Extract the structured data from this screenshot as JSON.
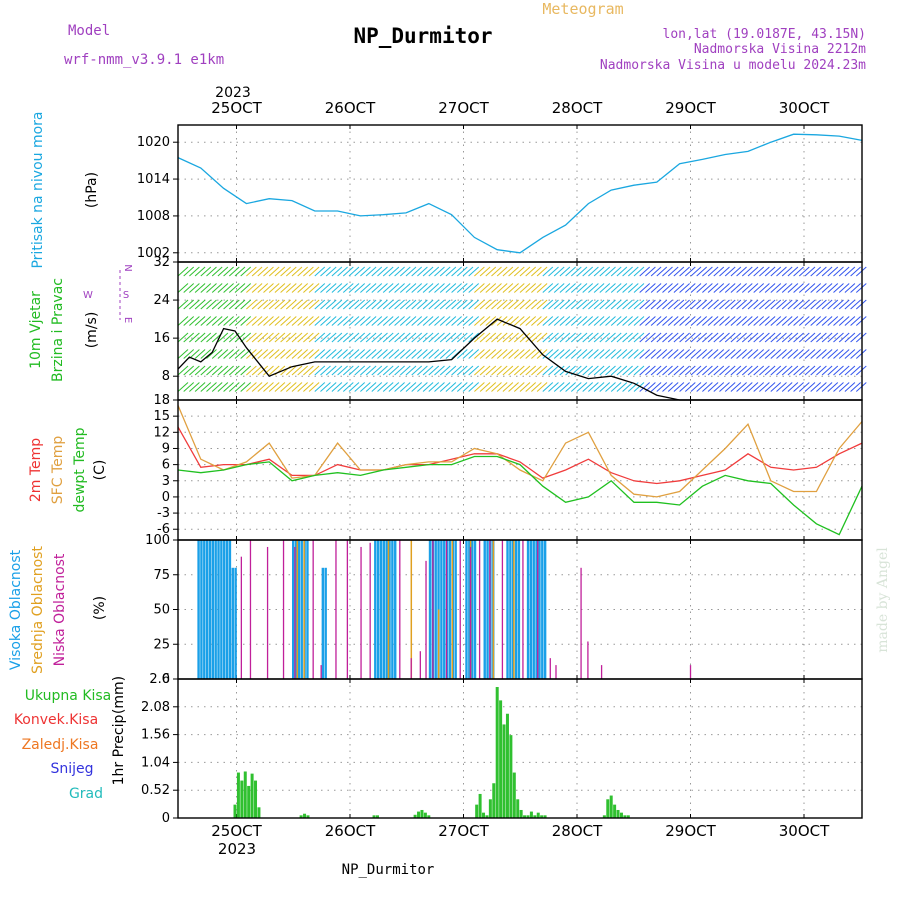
{
  "header": {
    "model_label": "Model",
    "model_name": "wrf-nmm_v3.9.1 e1km",
    "site_title": "NP_Durmitor",
    "product": "Meteogram",
    "coords": "lon,lat (19.0187E, 43.15N)",
    "elevation": "Nadmorska Visina 2212m",
    "model_elevation": "Nadmorska Visina u modelu 2024.23m"
  },
  "footer": {
    "site": "NP_Durmitor",
    "watermark": "made by Angel"
  },
  "colors": {
    "pressure": "#1aa7e0",
    "wind_speed": "#000000",
    "high_cloud": "#1aa0e8",
    "mid_cloud": "#e0a020",
    "low_cloud": "#c0209a",
    "t2m": "#f03c3c",
    "sfc": "#e0a040",
    "dew": "#20c020",
    "precip": "#30c030",
    "label_green": "#22bb22",
    "label_red": "#ee3333",
    "label_orange": "#ee7722",
    "label_blue": "#3333dd",
    "label_teal": "#22bbbb",
    "purple": "#a040c0",
    "gold": "#e8b860"
  },
  "chart_data": [
    {
      "type": "line",
      "title": "",
      "ylabel": "Pritisak na nivou mora",
      "unit": "(hPa)",
      "ylim": [
        1000.5,
        1022.8
      ],
      "yticks": [
        "1002",
        "1008",
        "1014",
        "1020"
      ],
      "x_axis": {
        "type": "date",
        "year": "2023",
        "start": "2023-10-24 12:00",
        "end": "2023-10-30 12:00",
        "ticks": [
          "25OCT",
          "26OCT",
          "27OCT",
          "28OCT",
          "29OCT",
          "30OCT"
        ]
      },
      "series": [
        {
          "color": "#1aa7e0",
          "x": [
            0,
            0.2,
            0.4,
            0.6,
            0.8,
            1.0,
            1.2,
            1.4,
            1.6,
            1.8,
            2.0,
            2.2,
            2.4,
            2.6,
            2.8,
            3.0,
            3.2,
            3.4,
            3.6,
            3.8,
            4.0,
            4.2,
            4.4,
            4.6,
            4.8,
            5.0,
            5.2,
            5.4,
            5.6,
            5.8,
            6.0
          ],
          "y": [
            1017.5,
            1015.8,
            1012.5,
            1010.0,
            1010.8,
            1010.5,
            1008.8,
            1008.8,
            1008.0,
            1008.2,
            1008.5,
            1010.0,
            1008.2,
            1004.5,
            1002.5,
            1002.0,
            1004.5,
            1006.5,
            1010.0,
            1012.2,
            1013.0,
            1013.5,
            1016.5,
            1017.2,
            1018.0,
            1018.5,
            1020.0,
            1021.3,
            1021.2,
            1021.0,
            1020.3
          ]
        }
      ]
    },
    {
      "type": "line",
      "title": "",
      "ylabel": [
        "10m Vjetar",
        "Brzina i Pravac"
      ],
      "unit": "(m/s)",
      "direction_legend": [
        "W",
        "N",
        "S",
        "E"
      ],
      "ylim": [
        3,
        32
      ],
      "yticks": [
        "8",
        "16",
        "24",
        "32"
      ],
      "series": [
        {
          "color": "#000000",
          "x": [
            0,
            0.1,
            0.2,
            0.3,
            0.4,
            0.5,
            0.6,
            0.8,
            1.0,
            1.2,
            1.4,
            1.6,
            1.8,
            2.0,
            2.2,
            2.4,
            2.6,
            2.8,
            3.0,
            3.2,
            3.4,
            3.6,
            3.8,
            4.0,
            4.2,
            4.4,
            4.6,
            4.8,
            5.0,
            5.2,
            5.4,
            5.6,
            5.8,
            6.0
          ],
          "y": [
            9.5,
            12.0,
            11.0,
            13.0,
            18.0,
            17.5,
            14.0,
            8.0,
            10.0,
            11.0,
            11.0,
            11.0,
            11.0,
            11.0,
            11.0,
            11.5,
            16.0,
            20.0,
            18.0,
            12.5,
            9.0,
            7.5,
            8.0,
            6.5,
            4.0,
            3.0,
            3.0,
            3.0,
            3.0,
            3.0,
            3.0,
            3.0,
            3.0,
            3.0
          ]
        }
      ]
    },
    {
      "type": "line",
      "title": "",
      "ylabel": [
        "2m Temp",
        "SFC Temp",
        "dewpt Temp"
      ],
      "unit": "(C)",
      "ylim": [
        -8,
        18
      ],
      "yticks": [
        "-6",
        "-3",
        "0",
        "3",
        "6",
        "9",
        "12",
        "15",
        "18"
      ],
      "series": [
        {
          "name": "2m Temp",
          "color": "#f03c3c",
          "x": [
            0,
            0.2,
            0.4,
            0.6,
            0.8,
            1.0,
            1.2,
            1.4,
            1.6,
            1.8,
            2.0,
            2.2,
            2.4,
            2.6,
            2.8,
            3.0,
            3.2,
            3.4,
            3.6,
            3.8,
            4.0,
            4.2,
            4.4,
            4.6,
            4.8,
            5.0,
            5.2,
            5.4,
            5.6,
            5.8,
            6.0
          ],
          "y": [
            13.0,
            5.5,
            6.0,
            6.0,
            7.0,
            4.0,
            4.0,
            6.0,
            5.0,
            5.0,
            6.0,
            6.0,
            7.0,
            8.0,
            8.0,
            6.5,
            3.5,
            5.0,
            7.0,
            4.5,
            3.0,
            2.5,
            3.0,
            4.0,
            5.0,
            8.0,
            5.5,
            5.0,
            5.5,
            8.0,
            10.0
          ]
        },
        {
          "name": "SFC Temp",
          "color": "#e0a040",
          "x": [
            0,
            0.2,
            0.4,
            0.6,
            0.8,
            1.0,
            1.2,
            1.4,
            1.6,
            1.8,
            2.0,
            2.2,
            2.4,
            2.6,
            2.8,
            3.0,
            3.2,
            3.4,
            3.6,
            3.8,
            4.0,
            4.2,
            4.4,
            4.6,
            4.8,
            5.0,
            5.2,
            5.4,
            5.6,
            5.8,
            6.0
          ],
          "y": [
            17.0,
            7.0,
            5.0,
            6.5,
            10.0,
            3.5,
            4.0,
            10.0,
            5.0,
            5.0,
            6.0,
            6.5,
            6.5,
            9.0,
            8.0,
            5.0,
            3.0,
            10.0,
            12.0,
            4.0,
            0.5,
            0.0,
            1.0,
            5.0,
            9.0,
            13.5,
            3.0,
            1.0,
            1.0,
            9.0,
            14.0
          ]
        },
        {
          "name": "dewpt Temp",
          "color": "#20c020",
          "x": [
            0,
            0.2,
            0.4,
            0.6,
            0.8,
            1.0,
            1.2,
            1.4,
            1.6,
            1.8,
            2.0,
            2.2,
            2.4,
            2.6,
            2.8,
            3.0,
            3.2,
            3.4,
            3.6,
            3.8,
            4.0,
            4.2,
            4.4,
            4.6,
            4.8,
            5.0,
            5.2,
            5.4,
            5.6,
            5.8,
            6.0
          ],
          "y": [
            5.0,
            4.5,
            5.0,
            6.0,
            6.5,
            3.0,
            4.0,
            4.5,
            4.0,
            5.0,
            5.5,
            6.0,
            6.0,
            7.5,
            7.5,
            6.0,
            2.0,
            -1.0,
            0.0,
            3.0,
            -1.0,
            -1.0,
            -1.5,
            2.0,
            4.0,
            3.0,
            2.5,
            -1.5,
            -5.0,
            -7.0,
            2.0
          ]
        }
      ]
    },
    {
      "type": "bar",
      "title": "",
      "ylabel": [
        "Visoka Oblacnost",
        "Srednja Oblacnost",
        "Niska Oblacnost"
      ],
      "unit": "(%)",
      "ylim": [
        0,
        100
      ],
      "yticks": [
        "0",
        "25",
        "50",
        "75",
        "100"
      ],
      "series": [
        {
          "name": "Visoka Oblacnost",
          "color": "#1aa0e8",
          "segments": [
            [
              0.17,
              0.47,
              100
            ],
            [
              0.47,
              0.52,
              80
            ],
            [
              1.0,
              1.14,
              100
            ],
            [
              1.26,
              1.3,
              80
            ],
            [
              1.72,
              1.9,
              100
            ],
            [
              2.2,
              2.44,
              100
            ],
            [
              2.52,
              2.6,
              100
            ],
            [
              2.68,
              2.78,
              100
            ],
            [
              2.88,
              2.98,
              100
            ],
            [
              3.06,
              3.22,
              100
            ]
          ]
        },
        {
          "name": "Srednja Oblacnost",
          "color": "#e0a020",
          "heights": [
            [
              1.04,
              100
            ],
            [
              1.1,
              100
            ],
            [
              1.84,
              100
            ],
            [
              2.04,
              100
            ],
            [
              2.28,
              50
            ],
            [
              2.4,
              100
            ],
            [
              2.56,
              100
            ],
            [
              2.76,
              100
            ],
            [
              2.94,
              100
            ]
          ]
        },
        {
          "name": "Niska Oblacnost",
          "color": "#c0209a",
          "heights": [
            [
              0.55,
              88
            ],
            [
              0.63,
              100
            ],
            [
              0.78,
              95
            ],
            [
              0.92,
              100
            ],
            [
              1.02,
              95
            ],
            [
              1.18,
              100
            ],
            [
              1.25,
              10
            ],
            [
              1.38,
              100
            ],
            [
              1.48,
              100
            ],
            [
              1.6,
              95
            ],
            [
              1.68,
              98
            ],
            [
              1.94,
              100
            ],
            [
              2.04,
              15
            ],
            [
              2.12,
              20
            ],
            [
              2.17,
              85
            ],
            [
              2.23,
              100
            ],
            [
              2.35,
              100
            ],
            [
              2.47,
              100
            ],
            [
              2.56,
              95
            ],
            [
              2.64,
              100
            ],
            [
              2.73,
              100
            ],
            [
              2.84,
              100
            ],
            [
              3.02,
              100
            ],
            [
              3.15,
              100
            ],
            [
              3.26,
              15
            ],
            [
              3.31,
              10
            ],
            [
              3.53,
              80
            ],
            [
              3.59,
              27
            ],
            [
              3.71,
              10
            ],
            [
              4.49,
              10
            ]
          ]
        }
      ]
    },
    {
      "type": "bar",
      "title": "",
      "ylabel": "1hr Precip",
      "unit": "(mm)",
      "ylim": [
        0,
        2.6
      ],
      "yticks": [
        "0",
        "0.52",
        "1.04",
        "1.56",
        "2.08",
        "2.6"
      ],
      "legend": [
        "Ukupna Kisa",
        "Konvek.Kisa",
        "Zaledj.Kisa",
        "Snijeg",
        "Grad"
      ],
      "series": [
        {
          "name": "Ukupna Kisa",
          "color": "#30c030",
          "x": [
            0.5,
            0.53,
            0.56,
            0.59,
            0.62,
            0.65,
            0.68,
            0.71,
            1.08,
            1.11,
            1.14,
            1.72,
            1.75,
            2.08,
            2.11,
            2.14,
            2.17,
            2.2,
            2.62,
            2.65,
            2.68,
            2.71,
            2.74,
            2.77,
            2.8,
            2.83,
            2.86,
            2.89,
            2.92,
            2.95,
            2.98,
            3.01,
            3.04,
            3.07,
            3.1,
            3.13,
            3.16,
            3.19,
            3.22,
            3.74,
            3.77,
            3.8,
            3.83,
            3.86,
            3.89,
            3.92,
            3.95
          ],
          "values": [
            0.25,
            0.85,
            0.7,
            0.87,
            0.6,
            0.83,
            0.7,
            0.2,
            0.05,
            0.08,
            0.05,
            0.05,
            0.05,
            0.06,
            0.12,
            0.15,
            0.1,
            0.05,
            0.25,
            0.45,
            0.1,
            0.05,
            0.35,
            0.65,
            2.45,
            2.2,
            1.75,
            1.95,
            1.55,
            0.85,
            0.35,
            0.15,
            0.05,
            0.05,
            0.12,
            0.05,
            0.1,
            0.05,
            0.05,
            0.05,
            0.35,
            0.42,
            0.25,
            0.15,
            0.1,
            0.05,
            0.05
          ]
        }
      ]
    }
  ]
}
